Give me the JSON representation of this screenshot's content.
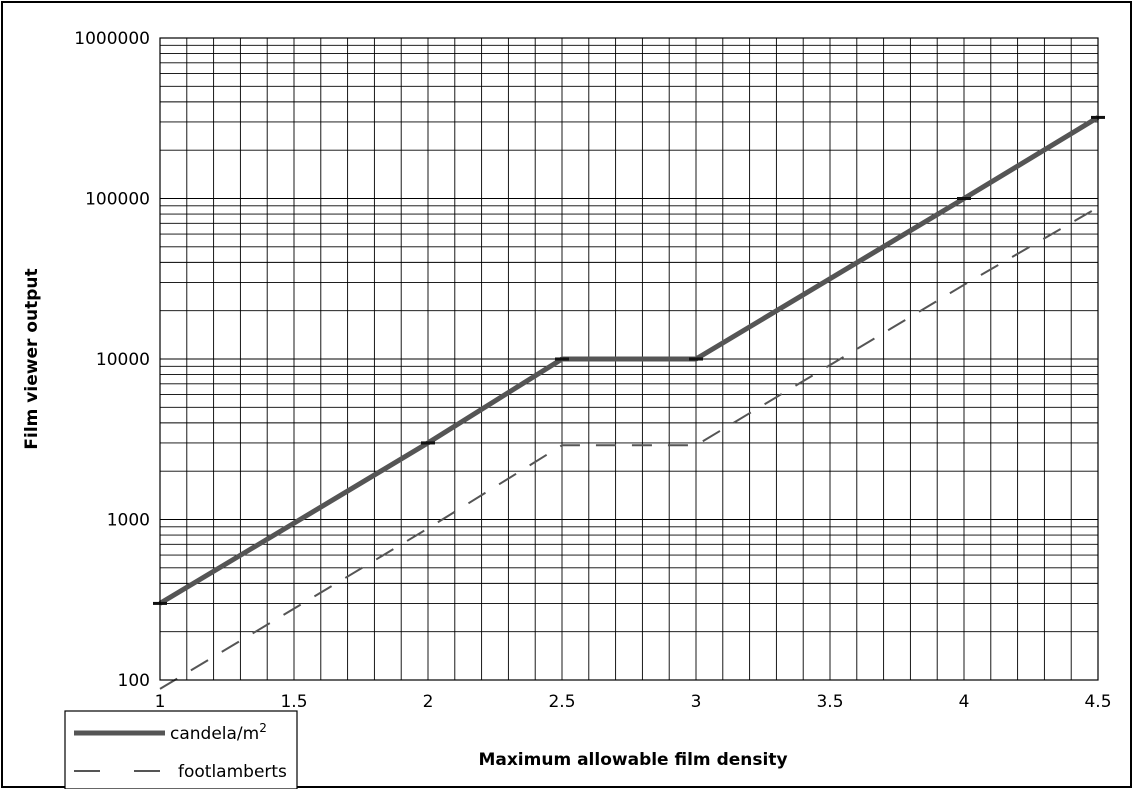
{
  "chart_data": {
    "type": "line",
    "xlabel": "Maximum allowable film density",
    "ylabel": "Film viewer output",
    "x_scale": "linear",
    "y_scale": "log",
    "xlim": [
      1,
      4.5
    ],
    "ylim": [
      100,
      1000000
    ],
    "x_ticks": [
      1,
      1.5,
      2,
      2.5,
      3,
      3.5,
      4,
      4.5
    ],
    "x_tick_labels": [
      "1",
      "1.5",
      "2",
      "2.5",
      "3",
      "3.5",
      "4",
      "4.5"
    ],
    "y_ticks": [
      100,
      1000,
      10000,
      100000,
      1000000
    ],
    "y_tick_labels": [
      "100",
      "1000",
      "10000",
      "100000",
      "1000000"
    ],
    "grid": true,
    "legend_position": "bottom-left",
    "series": [
      {
        "name": "candela/m²",
        "legend_label": "candela/m",
        "legend_superscript": "2",
        "style": "solid",
        "color": "#555555",
        "x": [
          1,
          2,
          2.5,
          3,
          4,
          4.5
        ],
        "y": [
          300,
          3000,
          10000,
          10000,
          100000,
          320000
        ]
      },
      {
        "name": "footlamberts",
        "legend_label": "footlamberts",
        "style": "dashed",
        "color": "#555555",
        "x": [
          1,
          2,
          2.5,
          3,
          4,
          4.5
        ],
        "y": [
          88,
          880,
          2900,
          2900,
          29000,
          88000
        ]
      }
    ]
  }
}
